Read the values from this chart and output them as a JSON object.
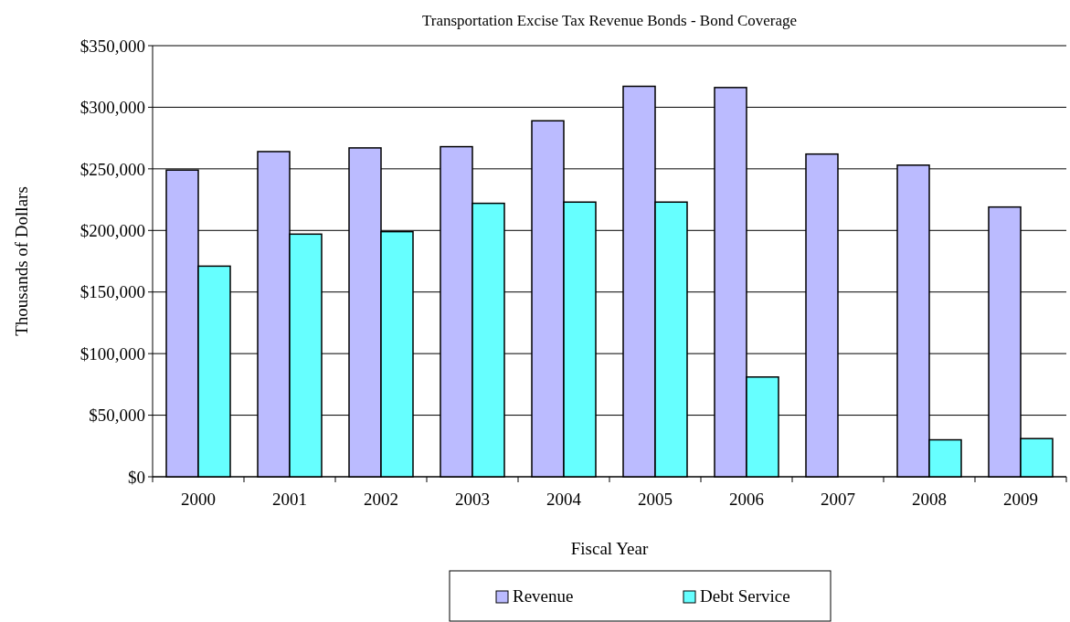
{
  "chart_data": {
    "type": "bar",
    "title": "Transportation Excise Tax Revenue Bonds - Bond Coverage",
    "xlabel": "Fiscal Year",
    "ylabel": "Thousands of  Dollars",
    "categories": [
      "2000",
      "2001",
      "2002",
      "2003",
      "2004",
      "2005",
      "2006",
      "2007",
      "2008",
      "2009"
    ],
    "series": [
      {
        "name": "Revenue",
        "color": "#bbbbff",
        "values": [
          249000,
          264000,
          267000,
          268000,
          289000,
          317000,
          316000,
          262000,
          253000,
          219000
        ]
      },
      {
        "name": "Debt Service",
        "color": "#66ffff",
        "values": [
          171000,
          197000,
          199000,
          222000,
          223000,
          223000,
          81000,
          null,
          30000,
          31000
        ]
      }
    ],
    "ylim": [
      0,
      350000
    ],
    "yticks": [
      {
        "value": 0,
        "label": "$0"
      },
      {
        "value": 50000,
        "label": "$50,000"
      },
      {
        "value": 100000,
        "label": "$100,000"
      },
      {
        "value": 150000,
        "label": "$150,000"
      },
      {
        "value": 200000,
        "label": "$200,000"
      },
      {
        "value": 250000,
        "label": "$250,000"
      },
      {
        "value": 300000,
        "label": "$300,000"
      },
      {
        "value": 350000,
        "label": "$350,000"
      }
    ],
    "grid": "y",
    "legend": "bottom"
  }
}
